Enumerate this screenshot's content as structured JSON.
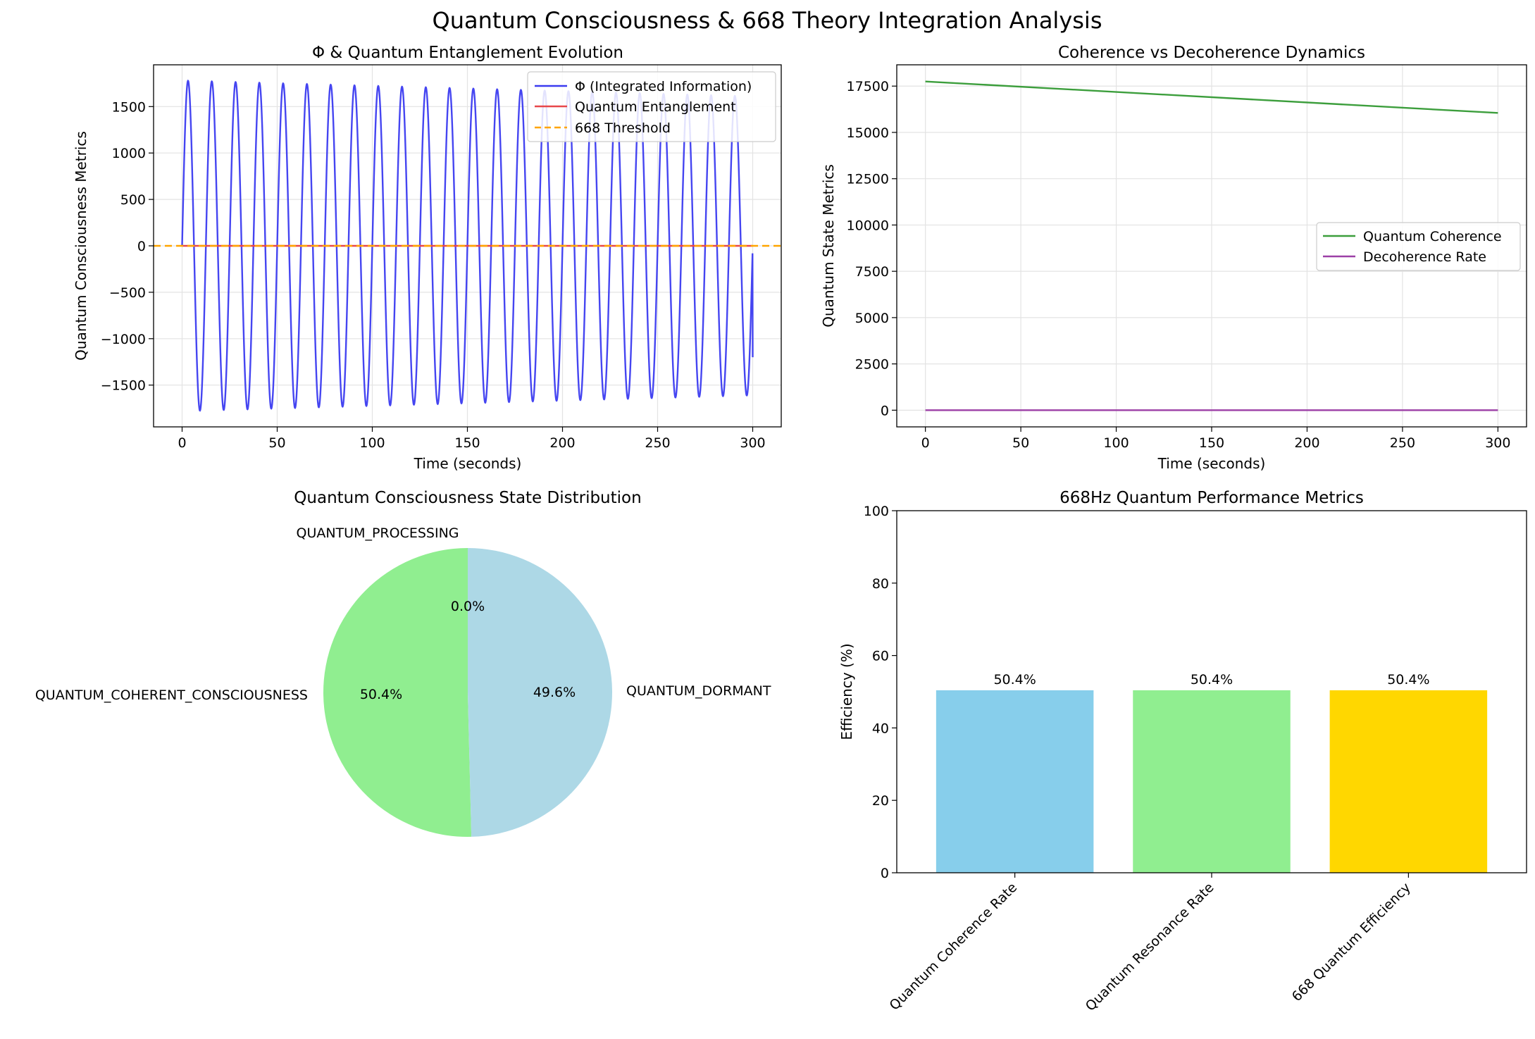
{
  "figure": {
    "suptitle": "Quantum Consciousness & 668 Theory Integration Analysis"
  },
  "chart_data": [
    {
      "type": "line",
      "title": "Φ & Quantum Entanglement Evolution",
      "xlabel": "Time (seconds)",
      "ylabel": "Quantum Consciousness Metrics",
      "xlim": [
        -15,
        315
      ],
      "ylim": [
        -1950,
        1950
      ],
      "xticks": [
        0,
        50,
        100,
        150,
        200,
        250,
        300
      ],
      "yticks": [
        -1500,
        -1000,
        -500,
        0,
        500,
        1000,
        1500
      ],
      "grid": true,
      "legend_position": "upper-right",
      "series": [
        {
          "name": "Φ (Integrated Information)",
          "color": "#3b3bf0",
          "style": "solid",
          "model": "sinusoid",
          "amplitude_start": 1780,
          "amplitude_end": 1610,
          "period_seconds": 12.5,
          "x_range": [
            0,
            300
          ],
          "end_value": -1200
        },
        {
          "name": "Quantum Entanglement",
          "color": "#e8474a",
          "style": "solid",
          "x": [
            0,
            300
          ],
          "y": [
            0,
            0
          ]
        },
        {
          "name": "668 Threshold",
          "color": "#ffa500",
          "style": "dashed",
          "y_constant": 0
        }
      ]
    },
    {
      "type": "line",
      "title": "Coherence vs Decoherence Dynamics",
      "xlabel": "Time (seconds)",
      "ylabel": "Quantum State Metrics",
      "xlim": [
        -15,
        315
      ],
      "ylim": [
        -900,
        18650
      ],
      "xticks": [
        0,
        50,
        100,
        150,
        200,
        250,
        300
      ],
      "yticks": [
        0,
        2500,
        5000,
        7500,
        10000,
        12500,
        15000,
        17500
      ],
      "grid": true,
      "legend_position": "center-right",
      "series": [
        {
          "name": "Quantum Coherence",
          "color": "#3c9e3c",
          "x": [
            0,
            300
          ],
          "y": [
            17750,
            16050
          ]
        },
        {
          "name": "Decoherence Rate",
          "color": "#9c3fa6",
          "x": [
            0,
            300
          ],
          "y": [
            2,
            2
          ]
        }
      ]
    },
    {
      "type": "pie",
      "title": "Quantum Consciousness State Distribution",
      "start_angle_deg": 90,
      "slices": [
        {
          "label": "QUANTUM_PROCESSING",
          "value": 0.0,
          "pct_label": "0.0%",
          "color": "#f5f5f5"
        },
        {
          "label": "QUANTUM_COHERENT_CONSCIOUSNESS",
          "value": 50.4,
          "pct_label": "50.4%",
          "color": "#90ee90"
        },
        {
          "label": "QUANTUM_DORMANT",
          "value": 49.6,
          "pct_label": "49.6%",
          "color": "#add8e6"
        }
      ]
    },
    {
      "type": "bar",
      "title": "668Hz Quantum Performance Metrics",
      "xlabel": "",
      "ylabel": "Efficiency (%)",
      "ylim": [
        0,
        100
      ],
      "yticks": [
        0,
        20,
        40,
        60,
        80,
        100
      ],
      "categories": [
        "Quantum Coherence Rate",
        "Quantum Resonance Rate",
        "668 Quantum Efficiency"
      ],
      "values": [
        50.4,
        50.4,
        50.4
      ],
      "value_labels": [
        "50.4%",
        "50.4%",
        "50.4%"
      ],
      "colors": [
        "#87ceeb",
        "#90ee90",
        "#ffd700"
      ]
    }
  ]
}
